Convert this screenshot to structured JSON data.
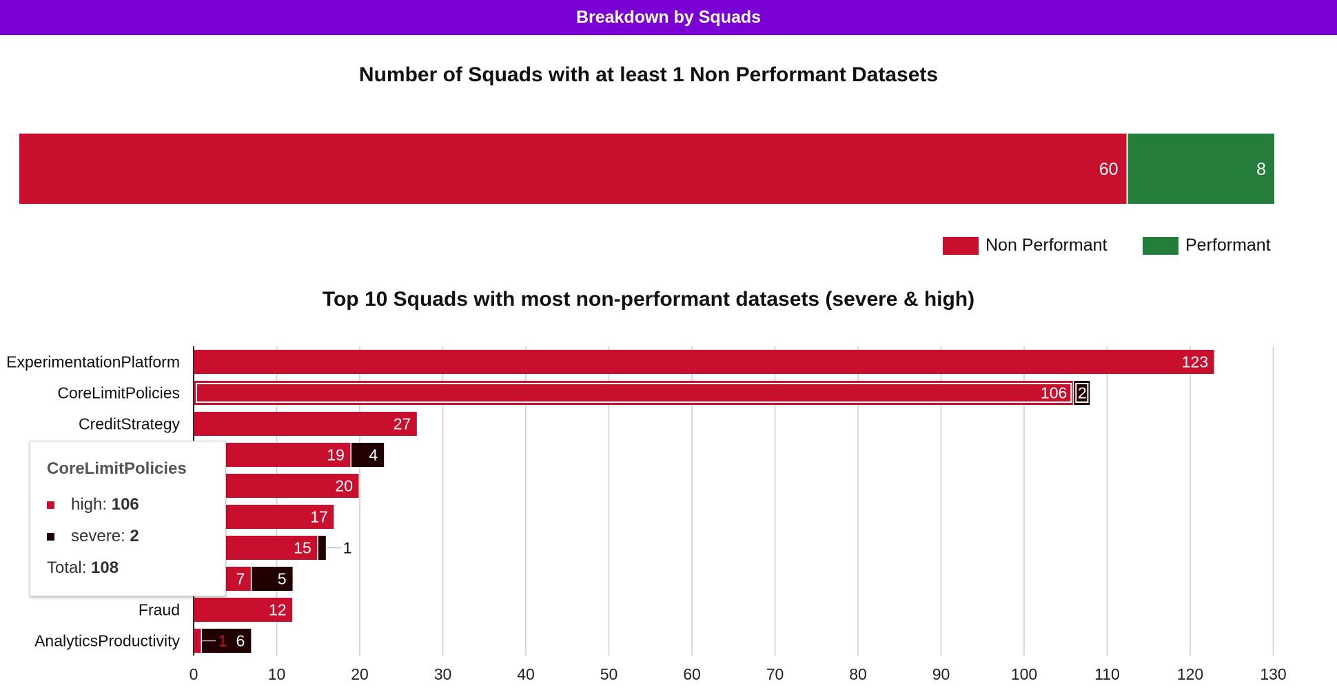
{
  "header": {
    "title": "Breakdown by Squads"
  },
  "colors": {
    "high": "#c8102e",
    "severe": "#200000",
    "performant": "#257d3c",
    "header": "#7b00d3"
  },
  "chart_data": [
    {
      "type": "bar",
      "orientation": "horizontal-stacked",
      "title": "Number of Squads with at least 1 Non Performant Datasets",
      "series": [
        {
          "name": "Non Performant",
          "values": [
            60
          ]
        },
        {
          "name": "Performant",
          "values": [
            8
          ]
        }
      ],
      "legend": "bottom-right"
    },
    {
      "type": "bar",
      "orientation": "horizontal-stacked",
      "title": "Top 10 Squads with most non-performant datasets (severe & high)",
      "categories": [
        "ExperimentationPlatform",
        "CoreLimitPolicies",
        "CreditStrategy",
        "",
        "",
        "",
        "",
        "",
        "Fraud",
        "AnalyticsProductivity"
      ],
      "series": [
        {
          "name": "high",
          "values": [
            123,
            106,
            27,
            19,
            20,
            17,
            15,
            7,
            12,
            1
          ]
        },
        {
          "name": "severe",
          "values": [
            0,
            2,
            0,
            4,
            0,
            0,
            1,
            5,
            0,
            6
          ]
        }
      ],
      "xlim": [
        0,
        130
      ],
      "xticks": [
        0,
        10,
        20,
        30,
        40,
        50,
        60,
        70,
        80,
        90,
        100,
        110,
        120,
        130
      ],
      "grid": true,
      "legend": "none"
    }
  ],
  "tooltip": {
    "title": "CoreLimitPolicies",
    "high_label": "high:",
    "high_value": "106",
    "severe_label": "severe:",
    "severe_value": "2",
    "total_label": "Total:",
    "total_value": "108"
  }
}
